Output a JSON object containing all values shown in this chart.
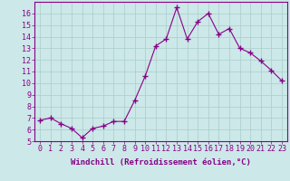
{
  "x": [
    0,
    1,
    2,
    3,
    4,
    5,
    6,
    7,
    8,
    9,
    10,
    11,
    12,
    13,
    14,
    15,
    16,
    17,
    18,
    19,
    20,
    21,
    22,
    23
  ],
  "y": [
    6.8,
    7.0,
    6.5,
    6.1,
    5.3,
    6.1,
    6.3,
    6.7,
    6.7,
    8.5,
    10.6,
    13.2,
    13.8,
    16.5,
    13.8,
    15.3,
    16.0,
    14.2,
    14.7,
    13.0,
    12.6,
    11.9,
    11.1,
    10.2
  ],
  "line_color": "#880088",
  "marker": "+",
  "marker_size": 4,
  "bg_color": "#cce8e8",
  "grid_color": "#aacccc",
  "xlabel": "Windchill (Refroidissement éolien,°C)",
  "xlabel_color": "#880088",
  "tick_color": "#880088",
  "ylim": [
    5,
    17
  ],
  "xlim": [
    -0.5,
    23.5
  ],
  "yticks": [
    5,
    6,
    7,
    8,
    9,
    10,
    11,
    12,
    13,
    14,
    15,
    16
  ],
  "xticks": [
    0,
    1,
    2,
    3,
    4,
    5,
    6,
    7,
    8,
    9,
    10,
    11,
    12,
    13,
    14,
    15,
    16,
    17,
    18,
    19,
    20,
    21,
    22,
    23
  ],
  "spine_color": "#880088",
  "xlabel_fontsize": 6.5,
  "tick_fontsize": 6.0
}
